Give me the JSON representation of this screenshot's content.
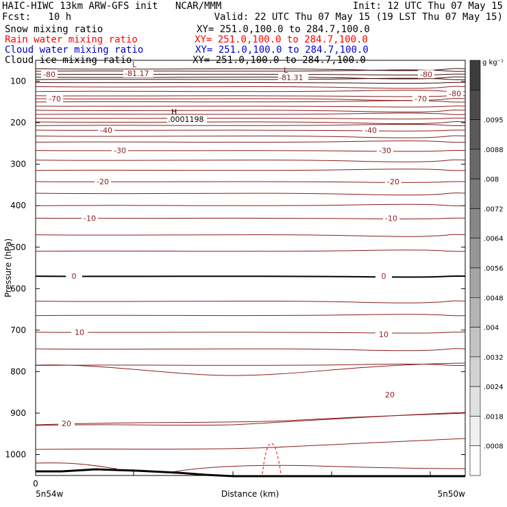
{
  "header": {
    "title": "HAIC-HIWC 13km ARW-GFS init   NCAR/MMM",
    "init": "Init: 12 UTC Thu 07 May 15",
    "fcst": "Fcst:   10 h",
    "valid": "Valid: 22 UTC Thu 07 May 15 (19 LST Thu 07 May 15)"
  },
  "fields": [
    {
      "name": "Snow mixing ratio",
      "xy": "XY= 251.0,100.0 to 284.7,100.0",
      "color": "#000000"
    },
    {
      "name": "Rain water mixing ratio",
      "xy": "XY= 251.0,100.0 to 284.7,100.0",
      "color": "#ff0000"
    },
    {
      "name": "Cloud water mixing ratio",
      "xy": "XY= 251.0,100.0 to 284.7,100.0",
      "color": "#0000cc"
    },
    {
      "name": "Cloud ice mixing ratio",
      "xy": "XY= 251.0,100.0 to 284.7,100.0",
      "color": "#000000"
    }
  ],
  "chart_data": {
    "type": "contour",
    "ylabel": "Pressure (hPa)",
    "xlabel": "Distance (km)",
    "x_start_label": "5n54w",
    "x_end_label": "5n50w",
    "x_zero_label": "0",
    "ylim": [
      1050,
      50
    ],
    "yticks": [
      "100",
      "200",
      "300",
      "400",
      "500",
      "600",
      "700",
      "800",
      "900",
      "1000"
    ],
    "temperature_contours": [
      {
        "label": "-80",
        "pressure": 83
      },
      {
        "label": "-70",
        "pressure": 142
      },
      {
        "label": "-40",
        "pressure": 218
      },
      {
        "label": "-30",
        "pressure": 267
      },
      {
        "label": "-20",
        "pressure": 342
      },
      {
        "label": "-10",
        "pressure": 430
      },
      {
        "label": "0",
        "pressure": 570
      },
      {
        "label": "10",
        "pressure": 705
      },
      {
        "label": "20",
        "pressure": 925
      }
    ],
    "extrema": [
      {
        "marker": "L",
        "value": "-81.17"
      },
      {
        "marker": "L",
        "value": "-81.31"
      },
      {
        "marker": "H",
        "value": ".0001198"
      }
    ],
    "colorbar": {
      "unit": "g kg⁻¹",
      "labels": [
        ".0095",
        ".0088",
        ".008",
        ".0072",
        ".0064",
        ".0056",
        ".0048",
        ".004",
        ".0032",
        ".0024",
        ".0018",
        ".0008"
      ]
    },
    "contour_color": "#8b1a1a",
    "rain_color": "#ff0000"
  }
}
